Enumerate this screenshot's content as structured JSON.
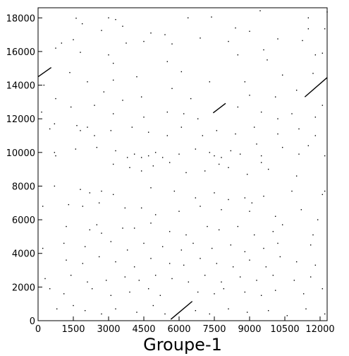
{
  "chart_data": {
    "type": "scatter",
    "title": "",
    "xlabel": "Groupe-1",
    "ylabel": "",
    "xlim": [
      0,
      12300
    ],
    "ylim": [
      0,
      18600
    ],
    "x_ticks": [
      0,
      1500,
      3000,
      4500,
      6000,
      7500,
      9000,
      10500,
      12000
    ],
    "y_ticks": [
      0,
      2000,
      4000,
      6000,
      8000,
      10000,
      12000,
      14000,
      16000,
      18000
    ],
    "grid": false,
    "legend": "none",
    "segments": [
      {
        "x1": 5650,
        "y1": 80,
        "x2": 6560,
        "y2": 1150
      },
      {
        "x1": 0,
        "y1": 14500,
        "x2": 560,
        "y2": 15050
      },
      {
        "x1": 7450,
        "y1": 12350,
        "x2": 7980,
        "y2": 12920
      },
      {
        "x1": 11350,
        "y1": 13300,
        "x2": 12300,
        "y2": 14450
      }
    ],
    "points": [
      [
        1620,
        17980
      ],
      [
        3000,
        18000
      ],
      [
        3300,
        17900
      ],
      [
        6380,
        18000
      ],
      [
        7380,
        18050
      ],
      [
        9450,
        18420
      ],
      [
        11500,
        18000
      ],
      [
        12300,
        18350
      ],
      [
        1880,
        17650
      ],
      [
        2700,
        17250
      ],
      [
        3600,
        17500
      ],
      [
        4800,
        17100
      ],
      [
        5400,
        17000
      ],
      [
        8400,
        17400
      ],
      [
        9000,
        17200
      ],
      [
        11500,
        17350
      ],
      [
        12200,
        17350
      ],
      [
        750,
        16200
      ],
      [
        1000,
        16500
      ],
      [
        1500,
        16700
      ],
      [
        3750,
        16500
      ],
      [
        4500,
        16600
      ],
      [
        5700,
        16450
      ],
      [
        6900,
        16800
      ],
      [
        8100,
        16600
      ],
      [
        9600,
        16100
      ],
      [
        10200,
        16750
      ],
      [
        11250,
        16650
      ],
      [
        1800,
        15950
      ],
      [
        3000,
        15800
      ],
      [
        3200,
        15300
      ],
      [
        5500,
        15400
      ],
      [
        8500,
        15800
      ],
      [
        9750,
        15500
      ],
      [
        11800,
        15800
      ],
      [
        12100,
        15900
      ],
      [
        250,
        14000
      ],
      [
        1350,
        14750
      ],
      [
        2100,
        14200
      ],
      [
        3200,
        14300
      ],
      [
        4200,
        14500
      ],
      [
        6100,
        14800
      ],
      [
        7300,
        14200
      ],
      [
        8800,
        14200
      ],
      [
        10400,
        14600
      ],
      [
        11700,
        14700
      ],
      [
        750,
        13200
      ],
      [
        2800,
        13600
      ],
      [
        3600,
        13100
      ],
      [
        4400,
        13300
      ],
      [
        5700,
        13800
      ],
      [
        6500,
        13200
      ],
      [
        9000,
        13400
      ],
      [
        10100,
        13300
      ],
      [
        11000,
        13700
      ],
      [
        150,
        12400
      ],
      [
        1400,
        12700
      ],
      [
        2400,
        12800
      ],
      [
        3200,
        12300
      ],
      [
        4500,
        12100
      ],
      [
        5500,
        12400
      ],
      [
        6200,
        12300
      ],
      [
        6800,
        12000
      ],
      [
        8500,
        12700
      ],
      [
        9500,
        12400
      ],
      [
        10200,
        12000
      ],
      [
        10800,
        12300
      ],
      [
        11800,
        12100
      ],
      [
        12100,
        12800
      ],
      [
        500,
        11400
      ],
      [
        700,
        11700
      ],
      [
        1650,
        11600
      ],
      [
        1800,
        11300
      ],
      [
        2100,
        11500
      ],
      [
        2400,
        11000
      ],
      [
        3100,
        11300
      ],
      [
        4000,
        11500
      ],
      [
        4700,
        11200
      ],
      [
        5500,
        11000
      ],
      [
        6100,
        11500
      ],
      [
        7000,
        11000
      ],
      [
        7600,
        11300
      ],
      [
        8400,
        11100
      ],
      [
        9200,
        11500
      ],
      [
        10200,
        11100
      ],
      [
        11100,
        11400
      ],
      [
        11800,
        11000
      ],
      [
        700,
        10000
      ],
      [
        750,
        9800
      ],
      [
        1600,
        10200
      ],
      [
        2500,
        10300
      ],
      [
        3300,
        10100
      ],
      [
        3800,
        9700
      ],
      [
        4100,
        9900
      ],
      [
        4400,
        9700
      ],
      [
        4700,
        9800
      ],
      [
        5000,
        10000
      ],
      [
        5300,
        9700
      ],
      [
        6000,
        9900
      ],
      [
        6700,
        10200
      ],
      [
        7300,
        10000
      ],
      [
        7500,
        9800
      ],
      [
        7800,
        9700
      ],
      [
        8200,
        10100
      ],
      [
        8600,
        9900
      ],
      [
        9300,
        10500
      ],
      [
        9500,
        9800
      ],
      [
        10400,
        10300
      ],
      [
        11100,
        9900
      ],
      [
        11500,
        10400
      ],
      [
        12200,
        9800
      ],
      [
        3200,
        9300
      ],
      [
        3900,
        9100
      ],
      [
        4400,
        8900
      ],
      [
        4900,
        9200
      ],
      [
        5600,
        9400
      ],
      [
        6300,
        8800
      ],
      [
        7100,
        8900
      ],
      [
        7700,
        9300
      ],
      [
        8100,
        9100
      ],
      [
        8900,
        8700
      ],
      [
        9500,
        9400
      ],
      [
        9800,
        9000
      ],
      [
        11000,
        8600
      ],
      [
        12100,
        7500
      ],
      [
        12200,
        7700
      ],
      [
        700,
        8000
      ],
      [
        1800,
        7800
      ],
      [
        2200,
        7600
      ],
      [
        2700,
        7700
      ],
      [
        3200,
        7500
      ],
      [
        4800,
        7900
      ],
      [
        5800,
        7700
      ],
      [
        6700,
        7300
      ],
      [
        7500,
        7600
      ],
      [
        8100,
        7200
      ],
      [
        8800,
        7300
      ],
      [
        9100,
        7000
      ],
      [
        9600,
        7400
      ],
      [
        10800,
        7700
      ],
      [
        200,
        6800
      ],
      [
        1300,
        6900
      ],
      [
        1900,
        6800
      ],
      [
        2600,
        7000
      ],
      [
        3700,
        6700
      ],
      [
        4400,
        6700
      ],
      [
        5000,
        6300
      ],
      [
        6000,
        6500
      ],
      [
        6900,
        6800
      ],
      [
        7800,
        6600
      ],
      [
        9000,
        6500
      ],
      [
        10100,
        6200
      ],
      [
        11200,
        6600
      ],
      [
        11900,
        6000
      ],
      [
        1200,
        5600
      ],
      [
        2200,
        5400
      ],
      [
        2500,
        5700
      ],
      [
        2700,
        5200
      ],
      [
        3600,
        5500
      ],
      [
        4100,
        5500
      ],
      [
        4800,
        5800
      ],
      [
        5600,
        5300
      ],
      [
        6300,
        5100
      ],
      [
        7200,
        5600
      ],
      [
        7700,
        5400
      ],
      [
        8500,
        5600
      ],
      [
        9200,
        5100
      ],
      [
        10000,
        5300
      ],
      [
        10400,
        5700
      ],
      [
        11700,
        5100
      ],
      [
        200,
        4300
      ],
      [
        1100,
        4600
      ],
      [
        2000,
        4400
      ],
      [
        3100,
        4700
      ],
      [
        3800,
        4200
      ],
      [
        4500,
        4600
      ],
      [
        5300,
        4400
      ],
      [
        6100,
        4200
      ],
      [
        6600,
        4600
      ],
      [
        7400,
        4300
      ],
      [
        8200,
        4500
      ],
      [
        8800,
        4100
      ],
      [
        9600,
        4300
      ],
      [
        10200,
        4600
      ],
      [
        11600,
        4500
      ],
      [
        1200,
        3600
      ],
      [
        1900,
        3400
      ],
      [
        2600,
        3800
      ],
      [
        3300,
        3500
      ],
      [
        4100,
        3200
      ],
      [
        4800,
        3700
      ],
      [
        5600,
        3400
      ],
      [
        6200,
        3300
      ],
      [
        6900,
        3700
      ],
      [
        7600,
        3400
      ],
      [
        8300,
        3200
      ],
      [
        9000,
        3600
      ],
      [
        9700,
        3200
      ],
      [
        10300,
        3800
      ],
      [
        11000,
        3500
      ],
      [
        11800,
        3300
      ],
      [
        300,
        2500
      ],
      [
        1400,
        2700
      ],
      [
        2100,
        2300
      ],
      [
        2900,
        2400
      ],
      [
        3700,
        2600
      ],
      [
        4300,
        2400
      ],
      [
        5000,
        2700
      ],
      [
        5700,
        2500
      ],
      [
        6400,
        2300
      ],
      [
        7100,
        2700
      ],
      [
        7800,
        2300
      ],
      [
        8600,
        2600
      ],
      [
        9300,
        2400
      ],
      [
        10000,
        2700
      ],
      [
        10900,
        2400
      ],
      [
        11600,
        2600
      ],
      [
        500,
        1900
      ],
      [
        1100,
        1600
      ],
      [
        2300,
        1900
      ],
      [
        3100,
        1500
      ],
      [
        3900,
        1700
      ],
      [
        4700,
        1900
      ],
      [
        5200,
        1500
      ],
      [
        6800,
        1700
      ],
      [
        7500,
        1600
      ],
      [
        7900,
        1900
      ],
      [
        8800,
        1700
      ],
      [
        9500,
        1500
      ],
      [
        10100,
        1800
      ],
      [
        11300,
        1600
      ],
      [
        12100,
        1900
      ],
      [
        800,
        700
      ],
      [
        1500,
        900
      ],
      [
        2000,
        600
      ],
      [
        2700,
        400
      ],
      [
        3300,
        700
      ],
      [
        4200,
        500
      ],
      [
        4900,
        900
      ],
      [
        5400,
        400
      ],
      [
        6700,
        600
      ],
      [
        7300,
        400
      ],
      [
        8100,
        700
      ],
      [
        8900,
        500
      ],
      [
        9800,
        600
      ],
      [
        10600,
        300
      ],
      [
        11400,
        700
      ],
      [
        12200,
        400
      ]
    ]
  }
}
